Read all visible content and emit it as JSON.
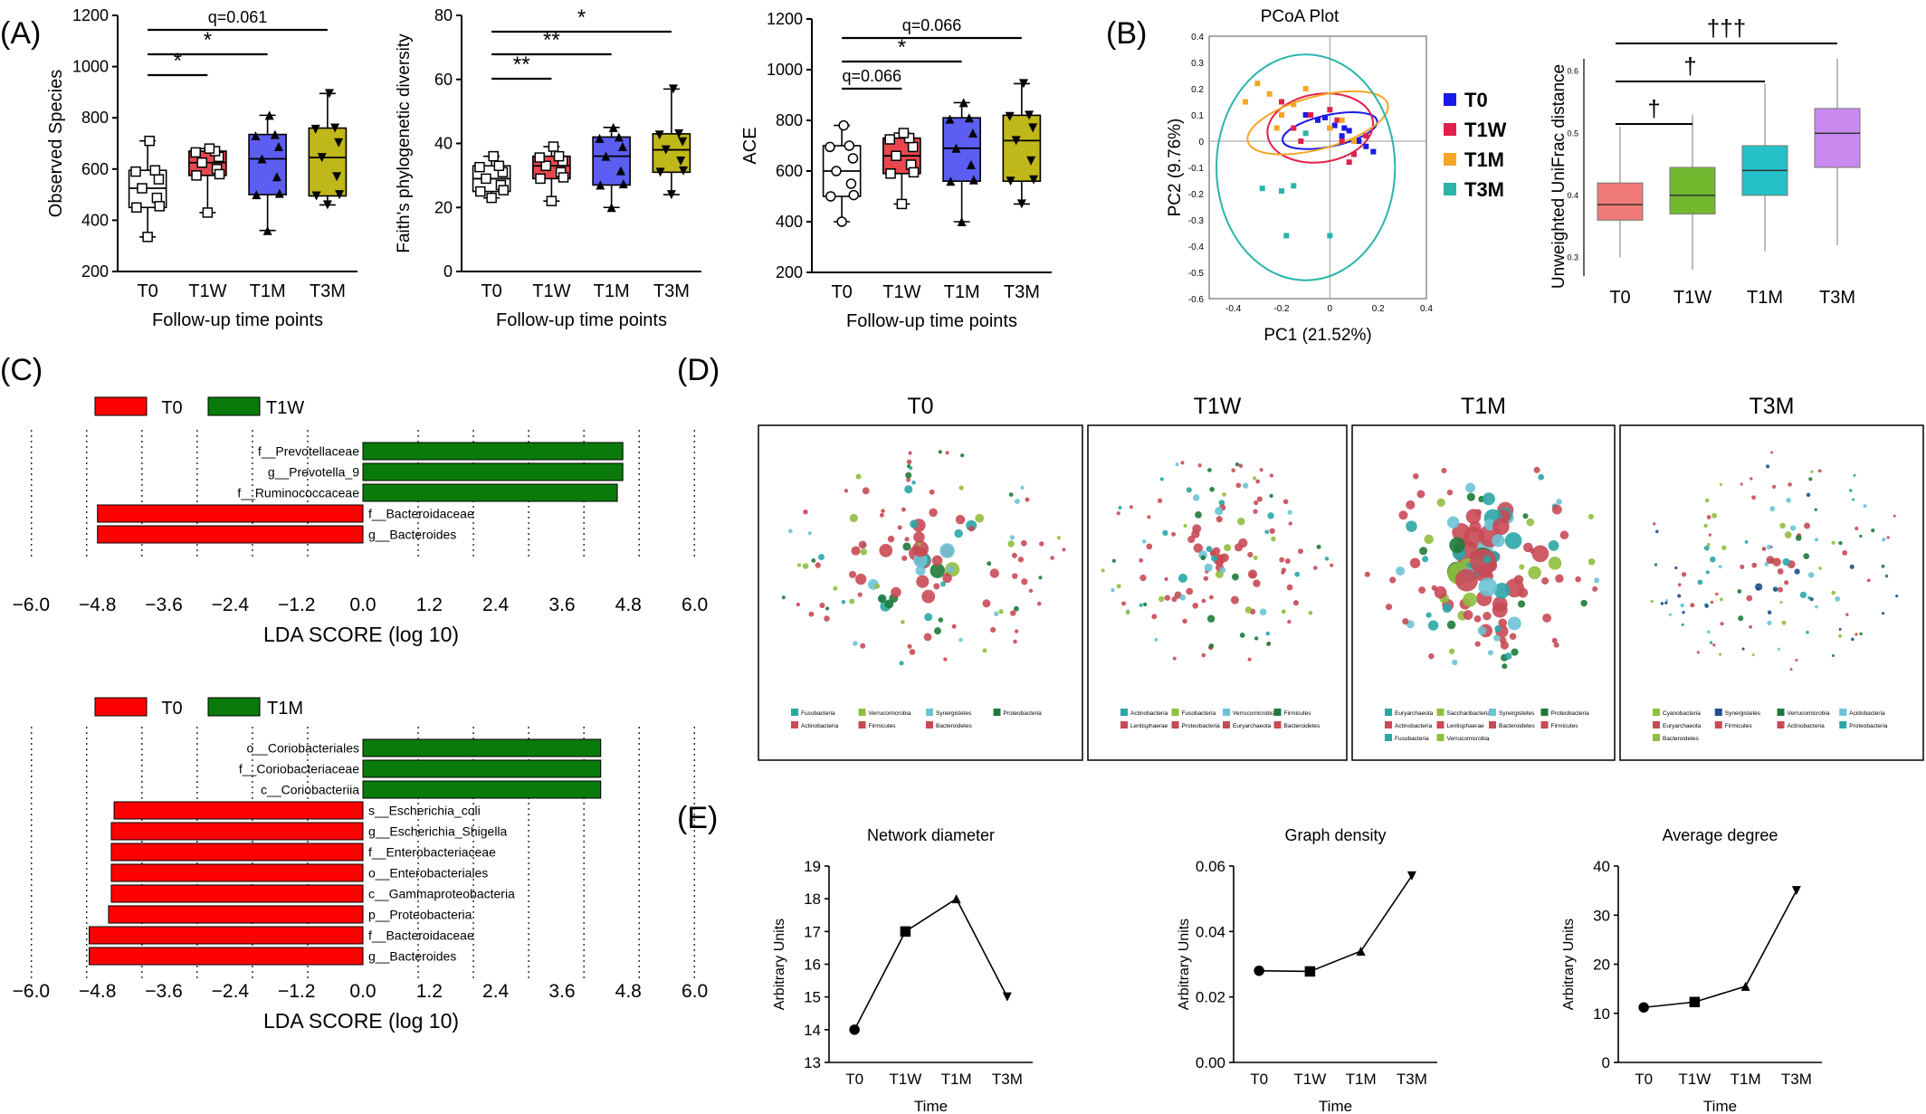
{
  "panels": {
    "A": "(A)",
    "B": "(B)",
    "C": "(C)",
    "D": "(D)",
    "E": "(E)"
  },
  "colors": {
    "T0": "#ffffff",
    "T1W": "#e8474e",
    "T1M": "#5b5ef0",
    "T3M": "#c0b71a",
    "pcoa_T0": "#1a1ae6",
    "pcoa_T1W": "#e0204a",
    "pcoa_T1M": "#f5a623",
    "pcoa_T3M": "#2ab5a8",
    "uni_T0": "#f07a78",
    "uni_T1W": "#72b82f",
    "uni_T1M": "#25c0c8",
    "uni_T3M": "#c98aef",
    "lda_T0": "#ff0000",
    "lda_T1": "#0a7a0a"
  },
  "chart_data": [
    {
      "id": "observed",
      "type": "box",
      "ylabel": "Observed  Species",
      "xlabel": "Follow-up time points",
      "categories": [
        "T0",
        "T1W",
        "T1M",
        "T3M"
      ],
      "ylim": [
        200,
        1200
      ],
      "yticks": [
        200,
        400,
        600,
        800,
        1000,
        1200
      ],
      "boxes": [
        {
          "min": 335,
          "q1": 450,
          "median": 525,
          "q3": 595,
          "max": 710
        },
        {
          "min": 430,
          "q1": 575,
          "median": 625,
          "q3": 670,
          "max": 680
        },
        {
          "min": 360,
          "q1": 500,
          "median": 640,
          "q3": 735,
          "max": 810
        },
        {
          "min": 460,
          "q1": 495,
          "median": 645,
          "q3": 760,
          "max": 895
        }
      ],
      "markers": [
        "square-open",
        "square-open",
        "triangle",
        "triangle-down"
      ],
      "sig": [
        {
          "a": 0,
          "b": 1,
          "label": "*"
        },
        {
          "a": 0,
          "b": 2,
          "label": "*"
        },
        {
          "a": 0,
          "b": 3,
          "label": "q=0.061"
        }
      ]
    },
    {
      "id": "faith",
      "type": "box",
      "ylabel": "Faith's phylogenetic diversity",
      "xlabel": "Follow-up time points",
      "categories": [
        "T0",
        "T1W",
        "T1M",
        "T3M"
      ],
      "ylim": [
        0,
        80
      ],
      "yticks": [
        0,
        20,
        40,
        60,
        80
      ],
      "boxes": [
        {
          "min": 23,
          "q1": 25,
          "median": 29,
          "q3": 33,
          "max": 36
        },
        {
          "min": 22,
          "q1": 29,
          "median": 33,
          "q3": 36,
          "max": 39
        },
        {
          "min": 20,
          "q1": 27,
          "median": 36,
          "q3": 42,
          "max": 45
        },
        {
          "min": 24,
          "q1": 31,
          "median": 38,
          "q3": 43,
          "max": 57
        }
      ],
      "markers": [
        "square-open",
        "square-open",
        "triangle",
        "triangle-down"
      ],
      "sig": [
        {
          "a": 0,
          "b": 1,
          "label": "**"
        },
        {
          "a": 0,
          "b": 2,
          "label": "**"
        },
        {
          "a": 0,
          "b": 3,
          "label": "*"
        }
      ]
    },
    {
      "id": "ace",
      "type": "box",
      "ylabel": "ACE",
      "xlabel": "Follow-up time points",
      "categories": [
        "T0",
        "T1W",
        "T1M",
        "T3M"
      ],
      "ylim": [
        200,
        1200
      ],
      "yticks": [
        200,
        400,
        600,
        800,
        1000,
        1200
      ],
      "boxes": [
        {
          "min": 400,
          "q1": 500,
          "median": 600,
          "q3": 700,
          "max": 780
        },
        {
          "min": 470,
          "q1": 590,
          "median": 660,
          "q3": 730,
          "max": 750
        },
        {
          "min": 400,
          "q1": 560,
          "median": 690,
          "q3": 810,
          "max": 870
        },
        {
          "min": 470,
          "q1": 560,
          "median": 720,
          "q3": 820,
          "max": 945
        }
      ],
      "markers": [
        "circle-open",
        "square-open",
        "triangle",
        "triangle-down"
      ],
      "sig": [
        {
          "a": 0,
          "b": 1,
          "label": "q=0.066"
        },
        {
          "a": 0,
          "b": 2,
          "label": "*"
        },
        {
          "a": 0,
          "b": 3,
          "label": "q=0.066"
        }
      ]
    },
    {
      "id": "pcoa",
      "type": "scatter",
      "title": "PCoA Plot",
      "xlabel": "PC1 (21.52%)",
      "ylabel": "PC2 (9.76%)",
      "xlim": [
        -0.5,
        0.4
      ],
      "ylim": [
        -0.6,
        0.4
      ],
      "xticks": [
        -0.4,
        -0.2,
        0,
        0.2,
        0.4
      ],
      "yticks": [
        -0.6,
        -0.5,
        -0.4,
        -0.3,
        -0.2,
        -0.1,
        0,
        0.1,
        0.2,
        0.3,
        0.4
      ],
      "legend": [
        "T0",
        "T1W",
        "T1M",
        "T3M"
      ],
      "series": [
        {
          "name": "T0",
          "x": [
            -0.05,
            0.0,
            0.05,
            0.1,
            0.15,
            -0.1,
            0.02,
            0.08,
            0.12,
            0.18,
            -0.02,
            0.06
          ],
          "y": [
            0.08,
            0.05,
            0.02,
            0.0,
            -0.02,
            0.1,
            0.06,
            0.04,
            0.0,
            -0.04,
            0.09,
            0.05
          ]
        },
        {
          "name": "T1W",
          "x": [
            -0.15,
            -0.08,
            0.0,
            0.05,
            0.1,
            -0.2,
            0.03,
            0.15,
            -0.12,
            0.08
          ],
          "y": [
            0.05,
            0.1,
            0.12,
            0.0,
            -0.05,
            0.15,
            0.08,
            0.02,
            0.0,
            -0.08
          ]
        },
        {
          "name": "T1M",
          "x": [
            -0.35,
            -0.25,
            -0.2,
            -0.1,
            0.0,
            0.1,
            -0.3,
            -0.15,
            0.05,
            -0.22
          ],
          "y": [
            0.15,
            0.18,
            0.1,
            0.2,
            0.05,
            0.0,
            0.22,
            0.14,
            0.08,
            0.05
          ]
        },
        {
          "name": "T3M",
          "x": [
            -0.28,
            -0.2,
            -0.15,
            -0.18,
            0.0,
            -0.1
          ],
          "y": [
            -0.18,
            -0.19,
            -0.17,
            -0.36,
            -0.36,
            0.03
          ]
        }
      ],
      "ellipses": [
        {
          "name": "T0",
          "cx": 0.0,
          "cy": 0.04,
          "rx": 0.2,
          "ry": 0.06,
          "rot": -12
        },
        {
          "name": "T1W",
          "cx": -0.04,
          "cy": 0.05,
          "rx": 0.22,
          "ry": 0.13,
          "rot": -8
        },
        {
          "name": "T1M",
          "cx": -0.05,
          "cy": 0.07,
          "rx": 0.3,
          "ry": 0.1,
          "rot": -15
        },
        {
          "name": "T3M",
          "cx": -0.1,
          "cy": -0.1,
          "rx": 0.37,
          "ry": 0.43,
          "rot": 0
        }
      ]
    },
    {
      "id": "unifrac",
      "type": "box",
      "ylabel": "Unweighted UniFrac distance",
      "categories": [
        "T0",
        "T1W",
        "T1M",
        "T3M"
      ],
      "ylim": [
        0.27,
        0.62
      ],
      "yticks": [
        0.3,
        0.4,
        0.5,
        0.6
      ],
      "boxes": [
        {
          "min": 0.3,
          "q1": 0.36,
          "median": 0.385,
          "q3": 0.42,
          "max": 0.51
        },
        {
          "min": 0.28,
          "q1": 0.37,
          "median": 0.4,
          "q3": 0.445,
          "max": 0.53
        },
        {
          "min": 0.31,
          "q1": 0.4,
          "median": 0.44,
          "q3": 0.48,
          "max": 0.58
        },
        {
          "min": 0.32,
          "q1": 0.445,
          "median": 0.5,
          "q3": 0.54,
          "max": 0.62
        }
      ],
      "sig": [
        {
          "a": 0,
          "b": 1,
          "label": "†"
        },
        {
          "a": 0,
          "b": 2,
          "label": "†"
        },
        {
          "a": 0,
          "b": 3,
          "label": "†††"
        }
      ]
    },
    {
      "id": "lda1",
      "type": "bar",
      "orientation": "horizontal",
      "xlabel": "LDA SCORE (log 10)",
      "legend": [
        "T0",
        "T1W"
      ],
      "xlim": [
        -6.0,
        6.0
      ],
      "xticks": [
        "−6.0",
        "−4.8",
        "−3.6",
        "−2.4",
        "−1.2",
        "0.0",
        "1.2",
        "2.4",
        "3.6",
        "4.8",
        "6.0"
      ],
      "categories": [
        "f__Prevotellaceae",
        "g__Prevotella_9",
        "f__Ruminococcaceae",
        "f__Bacteroidaceae",
        "g__Bacteroides"
      ],
      "values": [
        4.7,
        4.7,
        4.6,
        -4.8,
        -4.8
      ]
    },
    {
      "id": "lda2",
      "type": "bar",
      "orientation": "horizontal",
      "xlabel": "LDA SCORE (log 10)",
      "legend": [
        "T0",
        "T1M"
      ],
      "xlim": [
        -6.0,
        6.0
      ],
      "xticks": [
        "−6.0",
        "−4.8",
        "−3.6",
        "−2.4",
        "−1.2",
        "0.0",
        "1.2",
        "2.4",
        "3.6",
        "4.8",
        "6.0"
      ],
      "categories": [
        "o__Coriobacteriales",
        "f__Coriobacteriaceae",
        "c__Coriobacteriia",
        "s__Escherichia_coli",
        "g__Escherichia_Shigella",
        "f__Enterobacteriaceae",
        "o__Enterobacteriales",
        "c__Gammaproteobacteria",
        "p__Proteobacteria",
        "f__Bacteroidaceae",
        "g__Bacteroides"
      ],
      "values": [
        4.3,
        4.3,
        4.3,
        -4.5,
        -4.55,
        -4.55,
        -4.55,
        -4.55,
        -4.6,
        -4.95,
        -4.95
      ]
    },
    {
      "id": "diameter",
      "type": "line",
      "title": "Network diameter",
      "xlabel": "Time",
      "ylabel": "Arbitrary Units",
      "categories": [
        "T0",
        "T1W",
        "T1M",
        "T3M"
      ],
      "values": [
        14,
        17,
        18,
        15
      ],
      "ylim": [
        13,
        19
      ],
      "yticks": [
        13,
        14,
        15,
        16,
        17,
        18,
        19
      ],
      "markers": [
        "circle",
        "square",
        "triangle",
        "triangle-down"
      ]
    },
    {
      "id": "density",
      "type": "line",
      "title": "Graph density",
      "xlabel": "Time",
      "ylabel": "Arbitrary Units",
      "categories": [
        "T0",
        "T1W",
        "T1M",
        "T3M"
      ],
      "values": [
        0.028,
        0.0278,
        0.034,
        0.057
      ],
      "ylim": [
        0,
        0.06
      ],
      "yticks": [
        "0.00",
        "0.02",
        "0.04",
        "0.06"
      ],
      "markers": [
        "circle",
        "square",
        "triangle",
        "triangle-down"
      ]
    },
    {
      "id": "degree",
      "type": "line",
      "title": "Average degree",
      "xlabel": "Time",
      "ylabel": "Arbitrary Units",
      "categories": [
        "T0",
        "T1W",
        "T1M",
        "T3M"
      ],
      "values": [
        11.2,
        12.3,
        15.5,
        35
      ],
      "ylim": [
        0,
        40
      ],
      "yticks": [
        0,
        10,
        20,
        30,
        40
      ],
      "markers": [
        "circle",
        "square",
        "triangle",
        "triangle-down"
      ]
    }
  ],
  "networks": [
    {
      "title": "T0",
      "legend": [
        "Fusobacteria",
        "Verrucomicrobia",
        "Synergistetes",
        "Proteobacteria",
        "Actinobacteria",
        "Firmicutes",
        "Bacteroidetes"
      ]
    },
    {
      "title": "T1W",
      "legend": [
        "Actinobacteria",
        "Fusobacteria",
        "Verrucomicrobia",
        "Firmicutes",
        "Lentisphaerae",
        "Proteobacteria",
        "Euryarchaeota",
        "Bacteroidetes"
      ]
    },
    {
      "title": "T1M",
      "legend": [
        "Euryarchaeota",
        "Saccharibacteria",
        "Synergistetes",
        "Proteobacteria",
        "Actinobacteria",
        "Lentisphaerae",
        "Bacteroidetes",
        "Firmicutes",
        "Fusobacteria",
        "Verrucomicrobia"
      ]
    },
    {
      "title": "T3M",
      "legend": [
        "Cyanobacteria",
        "Synergistetes",
        "Verrucomicrobia",
        "Acidobacteria",
        "Euryarchaeota",
        "Firmicutes",
        "Actinobacteria",
        "Proteobacteria",
        "Bacteroidetes"
      ]
    }
  ]
}
